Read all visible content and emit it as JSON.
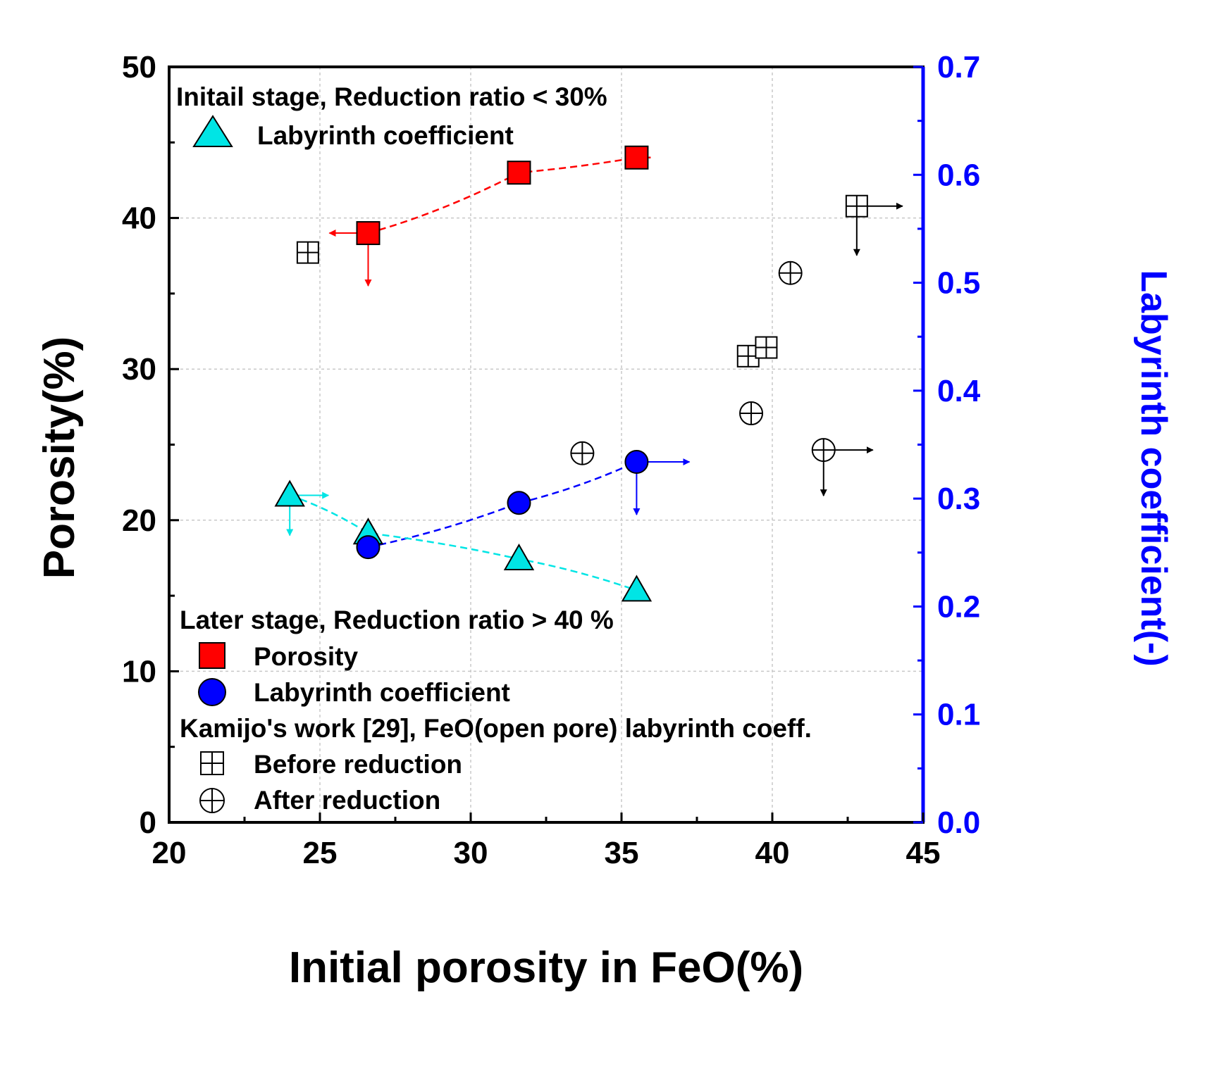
{
  "chart_data": {
    "type": "scatter",
    "xlabel": "Initial porosity in FeO(%)",
    "ylabel": "Porosity(%)",
    "y2label": "Labyrinth coefficient(-)",
    "xlim": [
      20,
      45
    ],
    "ylim": [
      0,
      50
    ],
    "y2lim": [
      0,
      0.7
    ],
    "x_ticks": [
      "20",
      "25",
      "30",
      "35",
      "40",
      "45"
    ],
    "y_ticks": [
      "0",
      "10",
      "20",
      "30",
      "40",
      "50"
    ],
    "y2_ticks": [
      "0.0",
      "0.1",
      "0.2",
      "0.3",
      "0.4",
      "0.5",
      "0.6",
      "0.7"
    ],
    "grid": true,
    "colors": {
      "porosity": "#ff0000",
      "labyrinth_later": "#0000ff",
      "labyrinth_initial": "#00e5e5",
      "right_axis": "#0000ff",
      "kamijo": "#000000"
    },
    "legend": {
      "initial_header": "Initail stage, Reduction ratio < 30%",
      "initial_item": "Labyrinth coefficient",
      "later_header": "Later stage, Reduction ratio > 40 %",
      "later_porosity": "Porosity",
      "later_labyrinth": "Labyrinth coefficient",
      "kamijo_header": "Kamijo's work [29], FeO(open pore) labyrinth coeff.",
      "kamijo_before": "Before reduction",
      "kamijo_after": "After reduction"
    },
    "series": [
      {
        "name": "Porosity",
        "axis": "left",
        "marker": "square",
        "x": [
          26.6,
          31.6,
          35.5
        ],
        "y": [
          39.0,
          43.0,
          44.0
        ]
      },
      {
        "name": "Labyrinth coefficient",
        "stage": "Later stage",
        "axis": "right",
        "marker": "circle",
        "x": [
          26.6,
          31.6,
          35.5
        ],
        "y": [
          0.255,
          0.296,
          0.334
        ]
      },
      {
        "name": "Labyrinth coefficient",
        "stage": "Initial stage",
        "axis": "right",
        "marker": "triangle",
        "x": [
          24.0,
          26.6,
          31.6,
          35.5
        ],
        "y": [
          0.303,
          0.268,
          0.244,
          0.215
        ]
      },
      {
        "name": "Before reduction",
        "axis": "right",
        "marker": "boxplus",
        "x": [
          24.6,
          39.2,
          39.8,
          42.8
        ],
        "y": [
          0.528,
          0.432,
          0.44,
          0.571
        ]
      },
      {
        "name": "After reduction",
        "axis": "right",
        "marker": "circleplus",
        "x": [
          33.7,
          40.6,
          39.3,
          41.7
        ],
        "y": [
          0.342,
          0.509,
          0.379,
          0.345
        ]
      }
    ]
  }
}
